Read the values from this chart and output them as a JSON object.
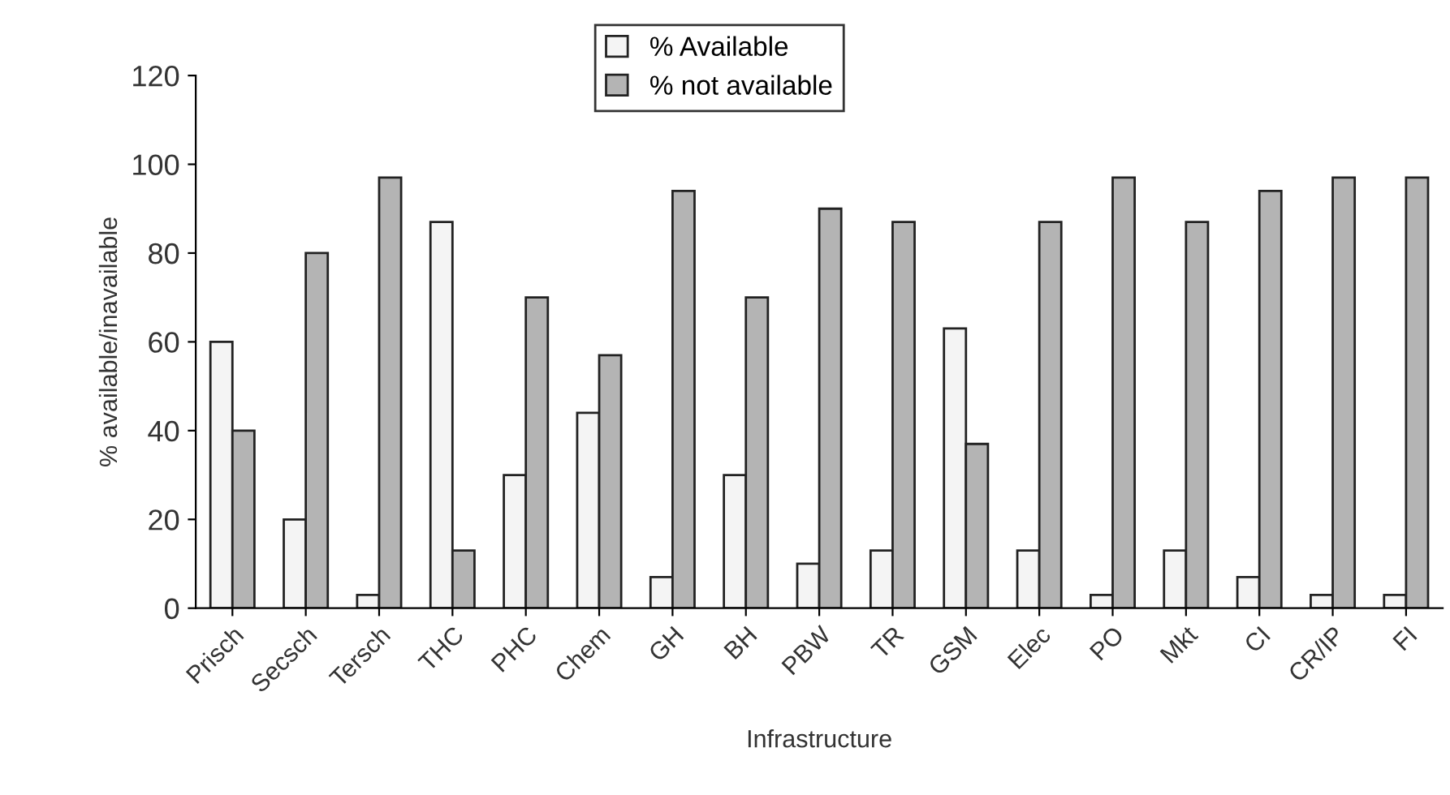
{
  "chart_data": {
    "type": "bar",
    "xlabel": "Infrastructure",
    "ylabel": "% available/inavailable",
    "categories": [
      "Prisch",
      "Secsch",
      "Tersch",
      "THC",
      "PHC",
      "Chem",
      "GH",
      "BH",
      "PBW",
      "TR",
      "GSM",
      "Elec",
      "PO",
      "Mkt",
      "CI",
      "CR/IP",
      "FI"
    ],
    "series": [
      {
        "name": "% Available",
        "color": "#f4f4f4",
        "values": [
          60,
          20,
          3,
          87,
          30,
          44,
          7,
          30,
          10,
          13,
          63,
          13,
          3,
          13,
          7,
          3,
          3
        ]
      },
      {
        "name": "% not available",
        "color": "#b4b4b4",
        "values": [
          40,
          80,
          97,
          13,
          70,
          57,
          94,
          70,
          90,
          87,
          37,
          87,
          97,
          87,
          94,
          97,
          97
        ]
      }
    ],
    "ylim": [
      0,
      120
    ],
    "yticks": [
      0,
      20,
      40,
      60,
      80,
      100,
      120
    ],
    "grid": false,
    "legend": "top"
  }
}
